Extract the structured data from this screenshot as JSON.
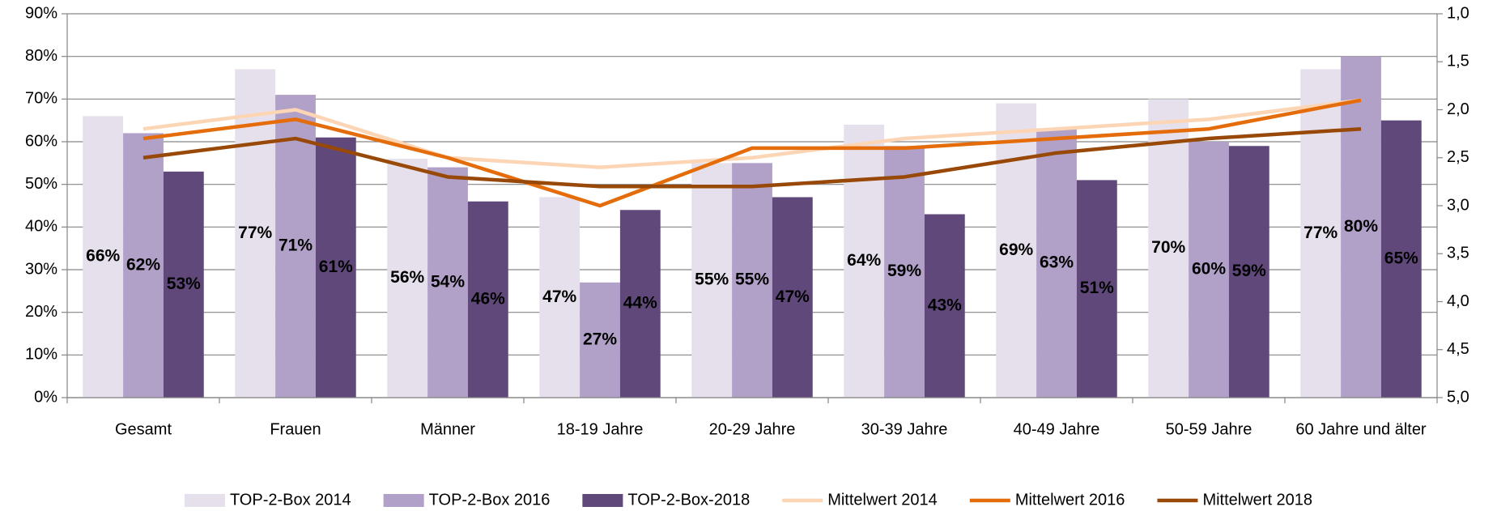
{
  "chart_data": {
    "type": "bar",
    "categories": [
      "Gesamt",
      "Frauen",
      "Männer",
      "18-19 Jahre",
      "20-29 Jahre",
      "30-39 Jahre",
      "40-49 Jahre",
      "50-59 Jahre",
      "60 Jahre und älter"
    ],
    "series": [
      {
        "name": "TOP-2-Box 2014",
        "type": "bar",
        "color": "#e6e0ec",
        "label_color": "#000000",
        "values": [
          66,
          77,
          56,
          47,
          55,
          64,
          69,
          70,
          77
        ],
        "value_labels": [
          "66%",
          "77%",
          "56%",
          "47%",
          "55%",
          "64%",
          "69%",
          "70%",
          "77%"
        ]
      },
      {
        "name": "TOP-2-Box 2016",
        "type": "bar",
        "color": "#b1a0c7",
        "label_color": "#000000",
        "values": [
          62,
          71,
          54,
          27,
          55,
          59,
          63,
          60,
          80
        ],
        "value_labels": [
          "62%",
          "71%",
          "54%",
          "27%",
          "55%",
          "59%",
          "63%",
          "60%",
          "80%"
        ]
      },
      {
        "name": "TOP-2-Box-2018",
        "type": "bar",
        "color": "#60497a",
        "label_color": "#ffffff",
        "values": [
          53,
          61,
          46,
          44,
          47,
          43,
          51,
          59,
          65
        ],
        "value_labels": [
          "53%",
          "61%",
          "46%",
          "44%",
          "47%",
          "43%",
          "51%",
          "59%",
          "65%"
        ]
      },
      {
        "name": "Mittelwert 2014",
        "type": "line",
        "axis": "y2",
        "color": "#fcd5b5",
        "values": [
          2.2,
          2.0,
          2.5,
          2.6,
          2.5,
          2.3,
          2.2,
          2.1,
          1.9
        ]
      },
      {
        "name": "Mittelwert 2016",
        "type": "line",
        "axis": "y2",
        "color": "#e46c0a",
        "values": [
          2.3,
          2.1,
          2.5,
          3.0,
          2.4,
          2.4,
          2.3,
          2.2,
          1.9
        ]
      },
      {
        "name": "Mittelwert 2018",
        "type": "line",
        "axis": "y2",
        "color": "#984807",
        "values": [
          2.5,
          2.3,
          2.7,
          2.8,
          2.8,
          2.7,
          2.45,
          2.3,
          2.2
        ]
      }
    ],
    "ylim": [
      0,
      90
    ],
    "yticks": [
      {
        "value": 0,
        "label": "0%"
      },
      {
        "value": 10,
        "label": "10%"
      },
      {
        "value": 20,
        "label": "20%"
      },
      {
        "value": 30,
        "label": "30%"
      },
      {
        "value": 40,
        "label": "40%"
      },
      {
        "value": 50,
        "label": "50%"
      },
      {
        "value": 60,
        "label": "60%"
      },
      {
        "value": 70,
        "label": "70%"
      },
      {
        "value": 80,
        "label": "80%"
      },
      {
        "value": 90,
        "label": "90%"
      }
    ],
    "y2lim": [
      5,
      1
    ],
    "y2ticks": [
      {
        "value": 1,
        "label": "1,0"
      },
      {
        "value": 1.5,
        "label": "1,5"
      },
      {
        "value": 2,
        "label": "2,0"
      },
      {
        "value": 2.5,
        "label": "2,5"
      },
      {
        "value": 3,
        "label": "3,0"
      },
      {
        "value": 3.5,
        "label": "3,5"
      },
      {
        "value": 4,
        "label": "4,0"
      },
      {
        "value": 4.5,
        "label": "4,5"
      },
      {
        "value": 5,
        "label": "5,0"
      }
    ],
    "grid": true,
    "legend": "bottom"
  }
}
